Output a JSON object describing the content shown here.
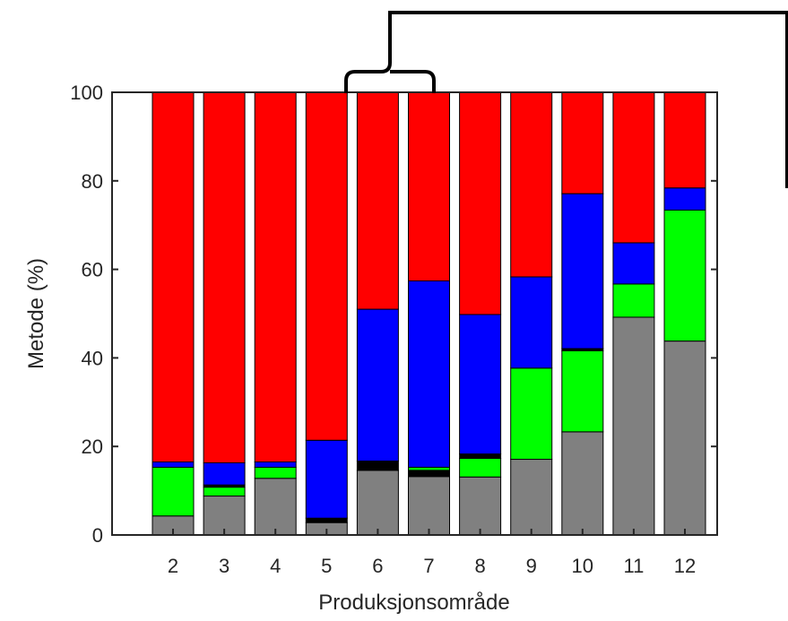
{
  "chart_data": {
    "type": "bar",
    "stacked": true,
    "xlabel": "Produksjonsområde",
    "ylabel": "Metode (%)",
    "ylim": [
      0,
      100
    ],
    "yticks": [
      0,
      20,
      40,
      60,
      80,
      100
    ],
    "grid": false,
    "categories": [
      "2",
      "3",
      "4",
      "5",
      "6",
      "7",
      "8",
      "9",
      "10",
      "11",
      "12"
    ],
    "series": [
      {
        "color": "#808080",
        "values": [
          4.3,
          8.8,
          12.8,
          2.8,
          14.6,
          13.2,
          13.1,
          17.1,
          23.3,
          49.2,
          43.8
        ]
      },
      {
        "color": "#000000",
        "values": [
          0.0,
          0.0,
          0.0,
          1.0,
          2.1,
          1.4,
          0.0,
          0.0,
          0.0,
          0.0,
          0.0
        ]
      },
      {
        "color": "#00ff00",
        "values": [
          11.0,
          2.0,
          2.5,
          0.0,
          0.0,
          0.7,
          4.2,
          20.6,
          18.3,
          7.5,
          29.6
        ]
      },
      {
        "color": "#000000",
        "values": [
          0.0,
          0.5,
          0.0,
          0.0,
          0.0,
          0.0,
          1.0,
          0.0,
          0.5,
          0.0,
          0.0
        ]
      },
      {
        "color": "#0000ff",
        "values": [
          1.2,
          5.0,
          1.2,
          17.6,
          34.3,
          42.1,
          31.5,
          20.6,
          35.0,
          9.3,
          5.0
        ]
      },
      {
        "color": "#ff0000",
        "values": [
          83.5,
          83.7,
          83.5,
          78.6,
          49.0,
          42.6,
          50.2,
          41.7,
          22.9,
          34.0,
          21.6
        ]
      }
    ]
  }
}
